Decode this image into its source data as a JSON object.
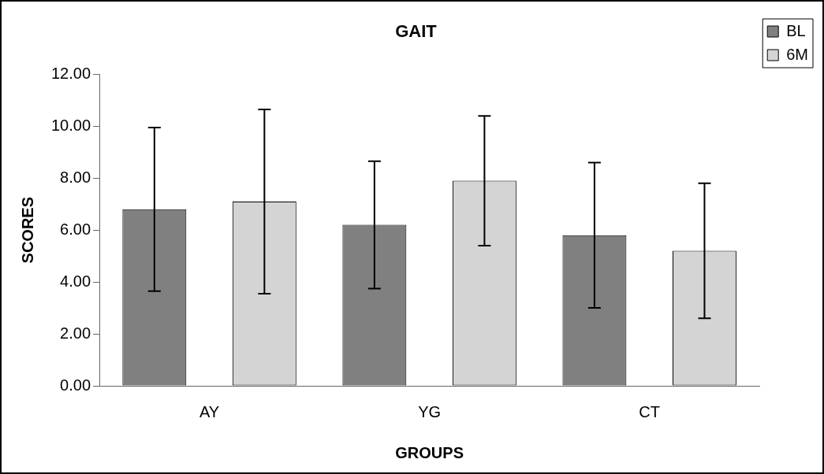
{
  "chart_data": {
    "type": "bar",
    "title": "GAIT",
    "xlabel": "GROUPS",
    "ylabel": "SCORES",
    "categories": [
      "AY",
      "YG",
      "CT"
    ],
    "series": [
      {
        "name": "BL",
        "color": "#808080",
        "values": [
          6.8,
          6.2,
          5.8
        ],
        "errors": [
          3.15,
          2.45,
          2.8
        ]
      },
      {
        "name": "6M",
        "color": "#d4d4d4",
        "values": [
          7.1,
          7.9,
          5.2
        ],
        "errors": [
          3.55,
          2.5,
          2.6
        ]
      }
    ],
    "ylim": [
      0,
      12
    ],
    "yticks": [
      {
        "value": 0,
        "label": "0.00"
      },
      {
        "value": 2,
        "label": "2.00"
      },
      {
        "value": 4,
        "label": "4.00"
      },
      {
        "value": 6,
        "label": "6.00"
      },
      {
        "value": 8,
        "label": "8.00"
      },
      {
        "value": 10,
        "label": "10.00"
      },
      {
        "value": 12,
        "label": "12.00"
      }
    ],
    "grid": false,
    "legend": "top right"
  }
}
